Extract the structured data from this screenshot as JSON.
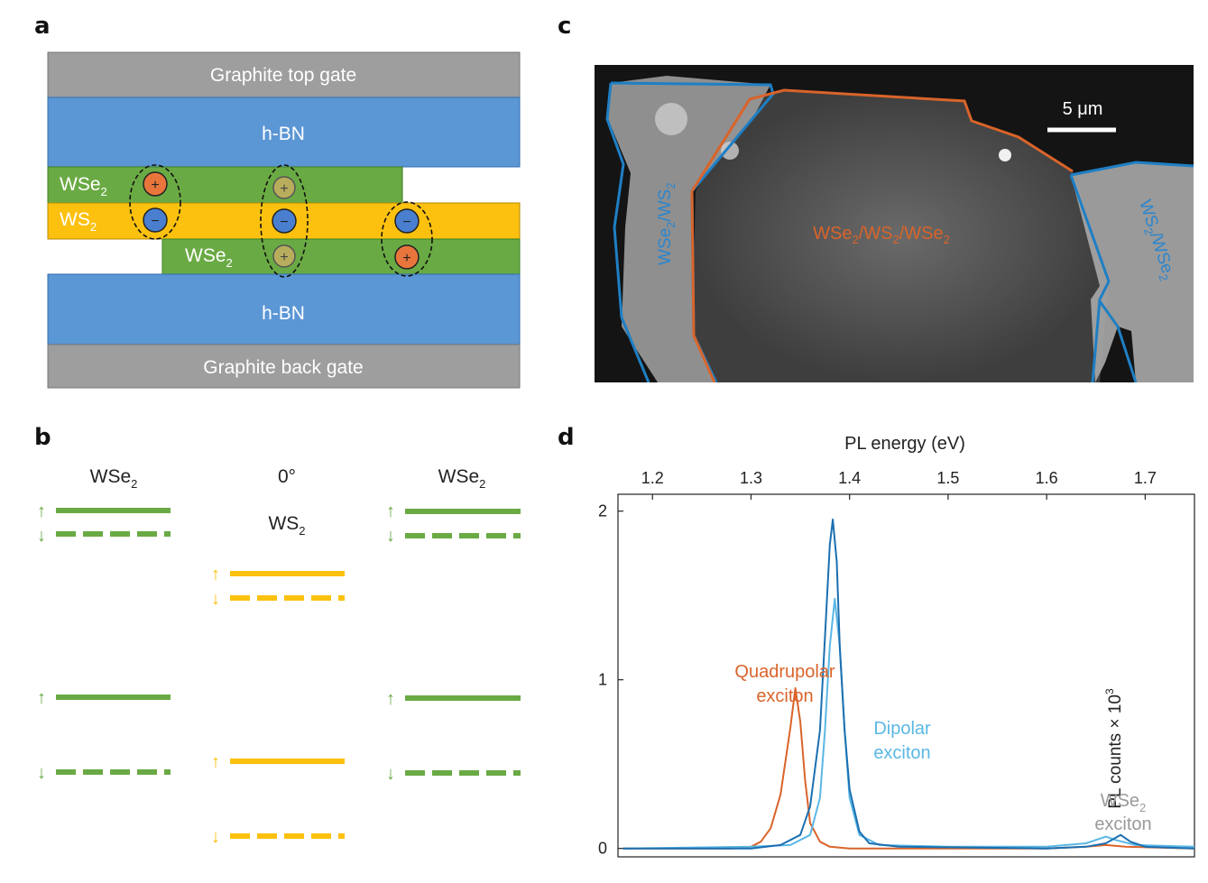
{
  "panels": {
    "a": "a",
    "b": "b",
    "c": "c",
    "d": "d"
  },
  "colors": {
    "graphite": "#9e9e9e",
    "hbn": "#5b96d5",
    "wse2": "#6aaa44",
    "ws2": "#fcc10f",
    "hole": "#e8763c",
    "electron": "#4a7fd0",
    "intra": "#b8ad5c",
    "orange_outline": "#d9642a",
    "blue_outline": "#1f7fc4",
    "dark_blue": "#1b6fb0",
    "light_blue": "#5bb7e5",
    "gray_trace": "#9a9a9a"
  },
  "panel_a": {
    "top_gate": "Graphite top gate",
    "hbn_top": "h-BN",
    "wse2_top": {
      "main": "WSe",
      "sub": "2"
    },
    "ws2": {
      "main": "WS",
      "sub": "2"
    },
    "wse2_bottom": {
      "main": "WSe",
      "sub": "2"
    },
    "hbn_bottom": "h-BN",
    "back_gate": "Graphite back gate",
    "hole_sign": "+",
    "electron_sign": "−"
  },
  "panel_b": {
    "left_title": {
      "main": "WSe",
      "sub": "2"
    },
    "center_angle": "0°",
    "center_title": {
      "main": "WS",
      "sub": "2"
    },
    "right_title": {
      "main": "WSe",
      "sub": "2"
    },
    "spin_up": "↑",
    "spin_down": "↓"
  },
  "panel_c": {
    "scale_bar": "5 μm",
    "left_region": {
      "a": "WSe",
      "b": "2",
      "c": "/WS",
      "d": "2"
    },
    "center_region": {
      "a": "WSe",
      "b": "2",
      "c": "/WS",
      "d": "2",
      "e": "/WSe",
      "f": "2"
    },
    "right_region": {
      "a": "WS",
      "b": "2",
      "c": "/WSe",
      "d": "2"
    }
  },
  "chart_data": {
    "type": "line",
    "xlabel": "PL energy (eV)",
    "ylabel": {
      "main": "PL counts × 10",
      "sup": "3"
    },
    "xlim": [
      1.165,
      1.75
    ],
    "ylim": [
      -0.05,
      2.1
    ],
    "xticks": [
      1.2,
      1.3,
      1.4,
      1.5,
      1.6,
      1.7
    ],
    "xtick_labels": [
      "1.2",
      "1.3",
      "1.4",
      "1.5",
      "1.6",
      "1.7"
    ],
    "yticks": [
      0,
      1,
      2
    ],
    "ytick_labels": [
      "0",
      "1",
      "2"
    ],
    "annotations": {
      "quadrupolar": [
        "Quadrupolar",
        "exciton"
      ],
      "dipolar": [
        "Dipolar",
        "exciton"
      ],
      "wse2": {
        "main": "WSe",
        "sub": "2",
        "line2": "exciton"
      }
    },
    "series": [
      {
        "color": "#d9642a",
        "points": [
          [
            1.17,
            0.0
          ],
          [
            1.28,
            0.0
          ],
          [
            1.3,
            0.01
          ],
          [
            1.31,
            0.04
          ],
          [
            1.32,
            0.12
          ],
          [
            1.33,
            0.32
          ],
          [
            1.34,
            0.72
          ],
          [
            1.345,
            0.95
          ],
          [
            1.35,
            0.75
          ],
          [
            1.355,
            0.4
          ],
          [
            1.36,
            0.15
          ],
          [
            1.37,
            0.04
          ],
          [
            1.38,
            0.01
          ],
          [
            1.4,
            0.0
          ],
          [
            1.6,
            0.0
          ],
          [
            1.64,
            0.01
          ],
          [
            1.66,
            0.02
          ],
          [
            1.68,
            0.01
          ],
          [
            1.75,
            0.0
          ]
        ]
      },
      {
        "color": "#5bb7e5",
        "points": [
          [
            1.17,
            0.0
          ],
          [
            1.3,
            0.01
          ],
          [
            1.34,
            0.02
          ],
          [
            1.36,
            0.08
          ],
          [
            1.37,
            0.3
          ],
          [
            1.375,
            0.7
          ],
          [
            1.38,
            1.2
          ],
          [
            1.385,
            1.48
          ],
          [
            1.39,
            1.2
          ],
          [
            1.395,
            0.7
          ],
          [
            1.4,
            0.3
          ],
          [
            1.41,
            0.08
          ],
          [
            1.43,
            0.02
          ],
          [
            1.5,
            0.01
          ],
          [
            1.6,
            0.01
          ],
          [
            1.64,
            0.03
          ],
          [
            1.66,
            0.07
          ],
          [
            1.67,
            0.05
          ],
          [
            1.69,
            0.02
          ],
          [
            1.75,
            0.01
          ]
        ]
      },
      {
        "color": "#1b6fb0",
        "points": [
          [
            1.17,
            0.0
          ],
          [
            1.3,
            0.0
          ],
          [
            1.33,
            0.02
          ],
          [
            1.35,
            0.08
          ],
          [
            1.36,
            0.25
          ],
          [
            1.37,
            0.7
          ],
          [
            1.375,
            1.25
          ],
          [
            1.38,
            1.8
          ],
          [
            1.383,
            1.95
          ],
          [
            1.387,
            1.7
          ],
          [
            1.39,
            1.2
          ],
          [
            1.395,
            0.7
          ],
          [
            1.4,
            0.35
          ],
          [
            1.41,
            0.1
          ],
          [
            1.42,
            0.03
          ],
          [
            1.45,
            0.01
          ],
          [
            1.6,
            0.0
          ],
          [
            1.64,
            0.01
          ],
          [
            1.66,
            0.03
          ],
          [
            1.675,
            0.08
          ],
          [
            1.685,
            0.04
          ],
          [
            1.7,
            0.01
          ],
          [
            1.75,
            0.0
          ]
        ]
      }
    ]
  }
}
